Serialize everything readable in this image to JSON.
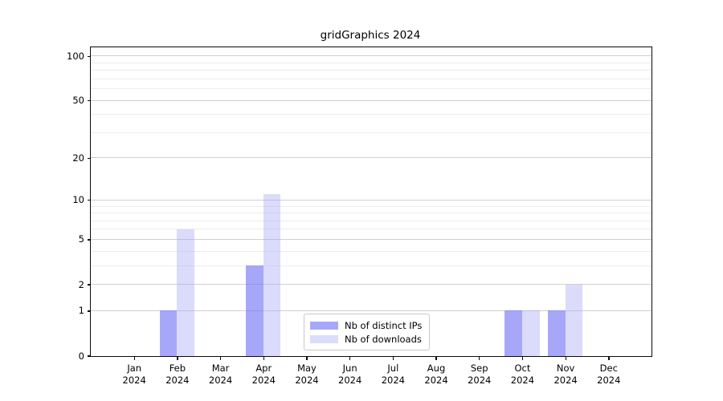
{
  "chart_data": {
    "type": "bar",
    "title": "gridGraphics 2024",
    "categories": [
      "Jan",
      "Feb",
      "Mar",
      "Apr",
      "May",
      "Jun",
      "Jul",
      "Aug",
      "Sep",
      "Oct",
      "Nov",
      "Dec"
    ],
    "year_label": "2024",
    "series": [
      {
        "name": "Nb of distinct IPs",
        "values": [
          0,
          1,
          0,
          3,
          0,
          0,
          0,
          0,
          0,
          1,
          1,
          0
        ],
        "color": "rgba(113,113,247,0.62)"
      },
      {
        "name": "Nb of downloads",
        "values": [
          0,
          6,
          0,
          11,
          0,
          0,
          0,
          0,
          0,
          1,
          2,
          0
        ],
        "color": "rgba(165,165,245,0.40)"
      }
    ],
    "xlabel": "",
    "ylabel": "",
    "y_scale": "log1p",
    "ylim": [
      0,
      115
    ],
    "y_major_ticks": [
      0,
      1,
      2,
      5,
      10,
      20,
      50,
      100
    ],
    "y_minor_gridlines": [
      3,
      4,
      6,
      7,
      8,
      9,
      30,
      40,
      60,
      70,
      80,
      90
    ],
    "grid": "on",
    "legend_position": "inside-bottom-center",
    "colors": {
      "major_grid": "#cfcfcf",
      "minor_grid": "#ececec",
      "axis": "#0a0a0a",
      "background": "#ffffff"
    }
  }
}
